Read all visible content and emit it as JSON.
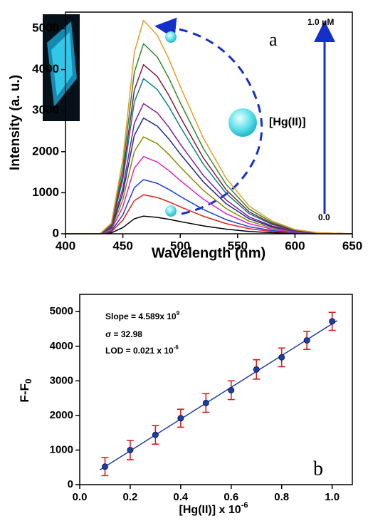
{
  "chart_data": [
    {
      "type": "line",
      "xlabel": "Wavelength (nm)",
      "ylabel": "Intensity (a. u.)",
      "annotations": [
        "a",
        "1.0 μM",
        "0.0",
        "[Hg(II)]"
      ],
      "x": [
        400,
        430,
        440,
        450,
        460,
        468,
        480,
        490,
        500,
        520,
        540,
        560,
        580,
        600,
        620,
        650
      ],
      "series": [
        {
          "color": "#000000",
          "values": [
            0,
            0,
            22,
            151,
            366,
            430,
            400,
            353,
            297,
            194,
            112,
            56,
            26,
            9,
            2,
            0
          ]
        },
        {
          "color": "#e0201b",
          "values": [
            0,
            0,
            48,
            333,
            808,
            950,
            884,
            779,
            656,
            428,
            247,
            124,
            57,
            19,
            5,
            0
          ]
        },
        {
          "color": "#1a3fd8",
          "values": [
            0,
            0,
            66,
            462,
            1122,
            1320,
            1228,
            1082,
            911,
            594,
            343,
            172,
            79,
            26,
            7,
            0
          ]
        },
        {
          "color": "#e020c8",
          "values": [
            0,
            0,
            94,
            658,
            1598,
            1880,
            1748,
            1542,
            1297,
            846,
            489,
            244,
            113,
            38,
            9,
            0
          ]
        },
        {
          "color": "#8a8a00",
          "values": [
            0,
            0,
            118,
            826,
            2006,
            2360,
            2195,
            1935,
            1628,
            1062,
            614,
            307,
            142,
            47,
            12,
            0
          ]
        },
        {
          "color": "#1c2a8c",
          "values": [
            0,
            0,
            141,
            987,
            2397,
            2820,
            2623,
            2312,
            1946,
            1269,
            733,
            367,
            169,
            56,
            14,
            0
          ]
        },
        {
          "color": "#7a1fa0",
          "values": [
            0,
            0,
            159,
            1110,
            2695,
            3170,
            2948,
            2599,
            2187,
            1427,
            824,
            412,
            190,
            63,
            16,
            0
          ]
        },
        {
          "color": "#0a7e8c",
          "values": [
            0,
            0,
            189,
            1323,
            3213,
            3780,
            3515,
            3100,
            2608,
            1701,
            983,
            491,
            227,
            76,
            19,
            0
          ]
        },
        {
          "color": "#8c1a3a",
          "values": [
            0,
            0,
            206,
            1442,
            3502,
            4120,
            3832,
            3378,
            2843,
            1854,
            1071,
            536,
            247,
            82,
            21,
            0
          ]
        },
        {
          "color": "#2e8b2e",
          "values": [
            0,
            0,
            232,
            1621,
            3936,
            4630,
            4306,
            3797,
            3195,
            2084,
            1204,
            602,
            278,
            93,
            23,
            0
          ]
        },
        {
          "color": "#e89a2a",
          "values": [
            0,
            0,
            260,
            1820,
            4420,
            5200,
            4836,
            4264,
            3588,
            2340,
            1352,
            676,
            312,
            104,
            26,
            0
          ]
        }
      ],
      "xlim": [
        400,
        650
      ],
      "xticks": [
        400,
        450,
        500,
        550,
        600,
        650
      ],
      "ylim": [
        0,
        5400
      ],
      "yticks": [
        0,
        1000,
        2000,
        3000,
        4000,
        5000
      ]
    },
    {
      "type": "scatter",
      "xlabel": "[Hg(II)] x 10",
      "xlabel_superscript": "-6",
      "ylabel": "F-F",
      "ylabel_subscript": "0",
      "annotations": [
        {
          "text": "Slope = 4.589x 10",
          "superscript": "9"
        },
        {
          "text": "σ = 32.98"
        },
        {
          "text": "LOD = 0.021 x 10",
          "superscript": "-6"
        },
        {
          "text": "b"
        }
      ],
      "x": [
        0.1,
        0.2,
        0.3,
        0.4,
        0.5,
        0.6,
        0.7,
        0.8,
        0.9,
        1.0
      ],
      "values": [
        520,
        1000,
        1440,
        1920,
        2360,
        2730,
        3330,
        3680,
        4170,
        4720
      ],
      "errors": [
        260,
        280,
        270,
        260,
        270,
        270,
        280,
        270,
        260,
        260
      ],
      "point_color": "#1f3fa0",
      "error_color": "#d62020",
      "fit": {
        "x": [
          0.08,
          1.02
        ],
        "values": [
          427,
          4741
        ],
        "color": "#1f3fa0"
      },
      "xlim": [
        0,
        1.08
      ],
      "xticks": [
        {
          "value": 0,
          "label": "0.0"
        },
        {
          "value": 0.2,
          "label": "0.2"
        },
        {
          "value": 0.4,
          "label": "0.4"
        },
        {
          "value": 0.6,
          "label": "0.6"
        },
        {
          "value": 0.8,
          "label": "0.8"
        },
        {
          "value": 1,
          "label": "1.0"
        }
      ],
      "ylim": [
        0,
        5500
      ],
      "yticks": [
        0,
        1000,
        2000,
        3000,
        4000,
        5000
      ]
    }
  ]
}
